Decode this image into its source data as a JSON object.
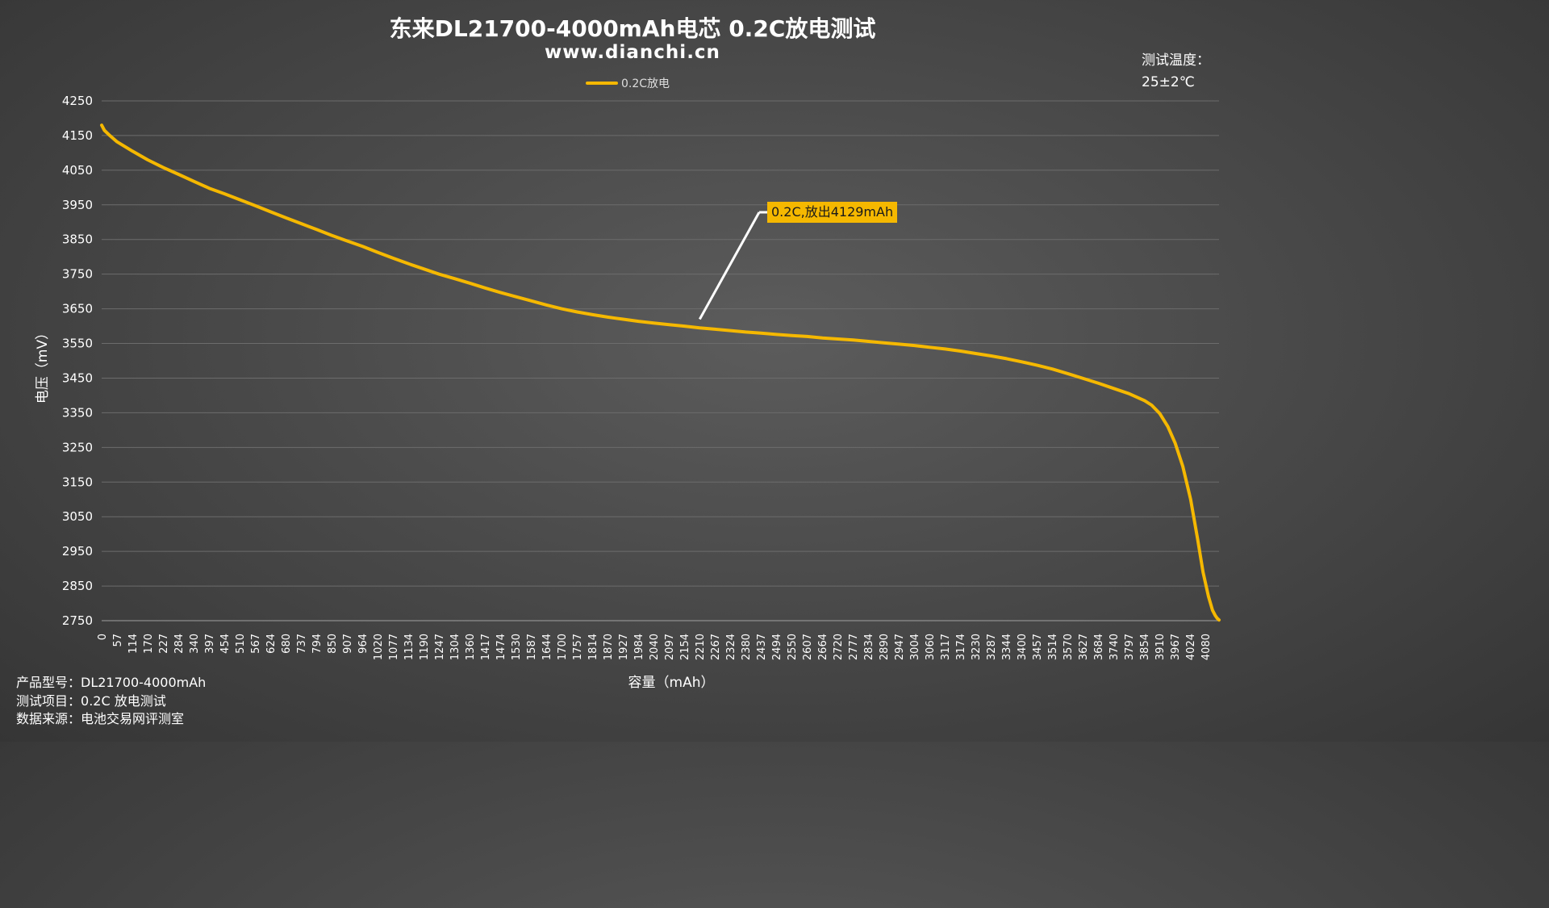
{
  "chart_data": {
    "type": "line",
    "title": "东来DL21700-4000mAh电芯 0.2C放电测试",
    "subtitle": "www.dianchi.cn",
    "xlabel": "容量（mAh）",
    "ylabel": "电压（mV）",
    "ylim": [
      2750,
      4250
    ],
    "xlim": [
      0,
      4129
    ],
    "y_ticks": [
      "4250",
      "4150",
      "4050",
      "3950",
      "3850",
      "3750",
      "3650",
      "3550",
      "3450",
      "3350",
      "3250",
      "3150",
      "3050",
      "2950",
      "2850",
      "2750"
    ],
    "x_ticks": [
      "0",
      "57",
      "114",
      "170",
      "227",
      "284",
      "340",
      "397",
      "454",
      "510",
      "567",
      "624",
      "680",
      "737",
      "794",
      "850",
      "907",
      "964",
      "1020",
      "1077",
      "1134",
      "1190",
      "1247",
      "1304",
      "1360",
      "1417",
      "1474",
      "1530",
      "1587",
      "1644",
      "1700",
      "1757",
      "1814",
      "1870",
      "1927",
      "1984",
      "2040",
      "2097",
      "2154",
      "2210",
      "2267",
      "2324",
      "2380",
      "2437",
      "2494",
      "2550",
      "2607",
      "2664",
      "2720",
      "2777",
      "2834",
      "2890",
      "2947",
      "3004",
      "3060",
      "3117",
      "3174",
      "3230",
      "3287",
      "3344",
      "3400",
      "3457",
      "3514",
      "3570",
      "3627",
      "3684",
      "3740",
      "3797",
      "3854",
      "3910",
      "3967",
      "4024",
      "4080"
    ],
    "grid": true,
    "legend_position": "top-center",
    "series": [
      {
        "name": "0.2C放电",
        "color": "#f5b800",
        "x": [
          0,
          10,
          30,
          57,
          114,
          170,
          227,
          284,
          340,
          397,
          454,
          510,
          567,
          624,
          680,
          737,
          794,
          850,
          907,
          964,
          1020,
          1077,
          1134,
          1190,
          1247,
          1304,
          1360,
          1417,
          1474,
          1530,
          1587,
          1644,
          1700,
          1757,
          1814,
          1870,
          1927,
          1984,
          2040,
          2097,
          2154,
          2210,
          2267,
          2324,
          2380,
          2437,
          2494,
          2550,
          2607,
          2664,
          2720,
          2777,
          2834,
          2890,
          2947,
          3004,
          3060,
          3117,
          3174,
          3230,
          3287,
          3344,
          3400,
          3457,
          3514,
          3570,
          3627,
          3684,
          3740,
          3797,
          3854,
          3880,
          3910,
          3940,
          3967,
          3995,
          4024,
          4050,
          4070,
          4090,
          4105,
          4115,
          4122,
          4129
        ],
        "y": [
          4180,
          4165,
          4150,
          4132,
          4105,
          4080,
          4058,
          4038,
          4018,
          3998,
          3982,
          3965,
          3948,
          3930,
          3913,
          3896,
          3879,
          3862,
          3846,
          3830,
          3813,
          3796,
          3780,
          3765,
          3750,
          3737,
          3724,
          3710,
          3697,
          3685,
          3673,
          3661,
          3650,
          3641,
          3633,
          3626,
          3620,
          3614,
          3609,
          3604,
          3600,
          3595,
          3591,
          3587,
          3583,
          3580,
          3576,
          3573,
          3570,
          3566,
          3563,
          3560,
          3556,
          3552,
          3548,
          3544,
          3539,
          3534,
          3528,
          3521,
          3514,
          3506,
          3497,
          3487,
          3476,
          3463,
          3449,
          3435,
          3420,
          3405,
          3385,
          3372,
          3348,
          3310,
          3262,
          3195,
          3100,
          2985,
          2890,
          2820,
          2780,
          2765,
          2757,
          2752
        ]
      }
    ],
    "annotation": {
      "text": "0.2C,放出4129mAh",
      "x": 2210,
      "y": 3620
    }
  },
  "temperature": {
    "label": "测试温度：",
    "value": "25±2℃"
  },
  "info": {
    "model_label": "产品型号：",
    "model_value": "DL21700-4000mAh",
    "test_label": "测试项目：",
    "test_value": "0.2C 放电测试",
    "source_label": "数据来源：",
    "source_value": "电池交易网评测室"
  }
}
